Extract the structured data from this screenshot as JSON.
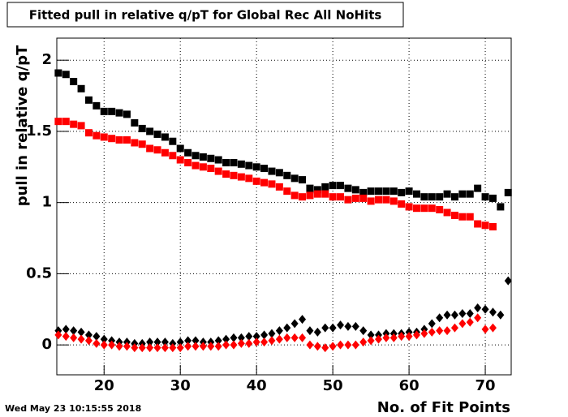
{
  "chart_data": {
    "type": "scatter",
    "title": "Fitted pull in relative q/pT for Global Rec All NoHits",
    "x_label": "No. of Fit Points",
    "y_label": "pull in relative q/pT",
    "timestamp": "Wed May 23 10:15:55 2018",
    "x": [
      14,
      15,
      16,
      17,
      18,
      19,
      20,
      21,
      22,
      23,
      24,
      25,
      26,
      27,
      28,
      29,
      30,
      31,
      32,
      33,
      34,
      35,
      36,
      37,
      38,
      39,
      40,
      41,
      42,
      43,
      44,
      45,
      46,
      47,
      48,
      49,
      50,
      51,
      52,
      53,
      54,
      55,
      56,
      57,
      58,
      59,
      60,
      61,
      62,
      63,
      64,
      65,
      66,
      67,
      68,
      69,
      70,
      71,
      72,
      73
    ],
    "series": [
      {
        "color": "#000000",
        "marker": "square",
        "values": [
          1.91,
          1.9,
          1.85,
          1.8,
          1.72,
          1.68,
          1.64,
          1.64,
          1.63,
          1.62,
          1.56,
          1.52,
          1.5,
          1.48,
          1.46,
          1.43,
          1.38,
          1.35,
          1.33,
          1.32,
          1.31,
          1.3,
          1.28,
          1.28,
          1.27,
          1.26,
          1.25,
          1.24,
          1.22,
          1.21,
          1.19,
          1.17,
          1.16,
          1.1,
          1.09,
          1.11,
          1.12,
          1.12,
          1.1,
          1.09,
          1.07,
          1.08,
          1.08,
          1.08,
          1.08,
          1.07,
          1.08,
          1.06,
          1.04,
          1.04,
          1.04,
          1.06,
          1.04,
          1.06,
          1.06,
          1.1,
          1.04,
          1.03,
          0.97,
          1.07
        ]
      },
      {
        "color": "#ff0000",
        "marker": "square",
        "values": [
          1.57,
          1.57,
          1.55,
          1.54,
          1.49,
          1.47,
          1.46,
          1.45,
          1.44,
          1.44,
          1.42,
          1.41,
          1.38,
          1.37,
          1.35,
          1.33,
          1.3,
          1.28,
          1.26,
          1.25,
          1.24,
          1.22,
          1.2,
          1.19,
          1.18,
          1.17,
          1.15,
          1.14,
          1.13,
          1.11,
          1.08,
          1.05,
          1.04,
          1.05,
          1.06,
          1.06,
          1.04,
          1.04,
          1.02,
          1.03,
          1.03,
          1.01,
          1.02,
          1.02,
          1.01,
          0.99,
          0.97,
          0.96,
          0.96,
          0.96,
          0.95,
          0.93,
          0.91,
          0.9,
          0.9,
          0.85,
          0.84,
          0.83,
          null,
          null
        ]
      },
      {
        "color": "#000000",
        "marker": "diamond",
        "values": [
          0.1,
          0.11,
          0.1,
          0.09,
          0.07,
          0.06,
          0.04,
          0.03,
          0.02,
          0.02,
          0.01,
          0.01,
          0.02,
          0.02,
          0.02,
          0.01,
          0.02,
          0.03,
          0.03,
          0.02,
          0.02,
          0.03,
          0.04,
          0.05,
          0.05,
          0.06,
          0.06,
          0.07,
          0.08,
          0.1,
          0.12,
          0.15,
          0.18,
          0.1,
          0.09,
          0.12,
          0.12,
          0.14,
          0.13,
          0.13,
          0.1,
          0.07,
          0.07,
          0.08,
          0.08,
          0.08,
          0.09,
          0.09,
          0.11,
          0.15,
          0.19,
          0.21,
          0.21,
          0.22,
          0.22,
          0.26,
          0.25,
          0.23,
          0.21,
          0.45
        ]
      },
      {
        "color": "#ff0000",
        "marker": "diamond",
        "values": [
          0.07,
          0.06,
          0.05,
          0.04,
          0.03,
          0.01,
          0.0,
          0.0,
          -0.01,
          -0.01,
          -0.02,
          -0.02,
          -0.02,
          -0.02,
          -0.02,
          -0.02,
          -0.02,
          -0.01,
          -0.01,
          -0.01,
          -0.01,
          -0.01,
          0.0,
          0.0,
          0.01,
          0.01,
          0.02,
          0.02,
          0.03,
          0.04,
          0.05,
          0.05,
          0.05,
          0.0,
          -0.01,
          -0.02,
          -0.01,
          0.0,
          0.0,
          0.0,
          0.02,
          0.03,
          0.04,
          0.05,
          0.05,
          0.06,
          0.06,
          0.07,
          0.08,
          0.09,
          0.1,
          0.1,
          0.12,
          0.15,
          0.16,
          0.19,
          0.11,
          0.12,
          null,
          null
        ]
      }
    ],
    "xlim": [
      13.8,
      73.4
    ],
    "xticks": [
      20,
      30,
      40,
      50,
      60,
      70
    ],
    "ylim": [
      -0.21,
      2.155
    ],
    "yticks": [
      0,
      0.5,
      1,
      1.5,
      2
    ],
    "grid": true
  }
}
